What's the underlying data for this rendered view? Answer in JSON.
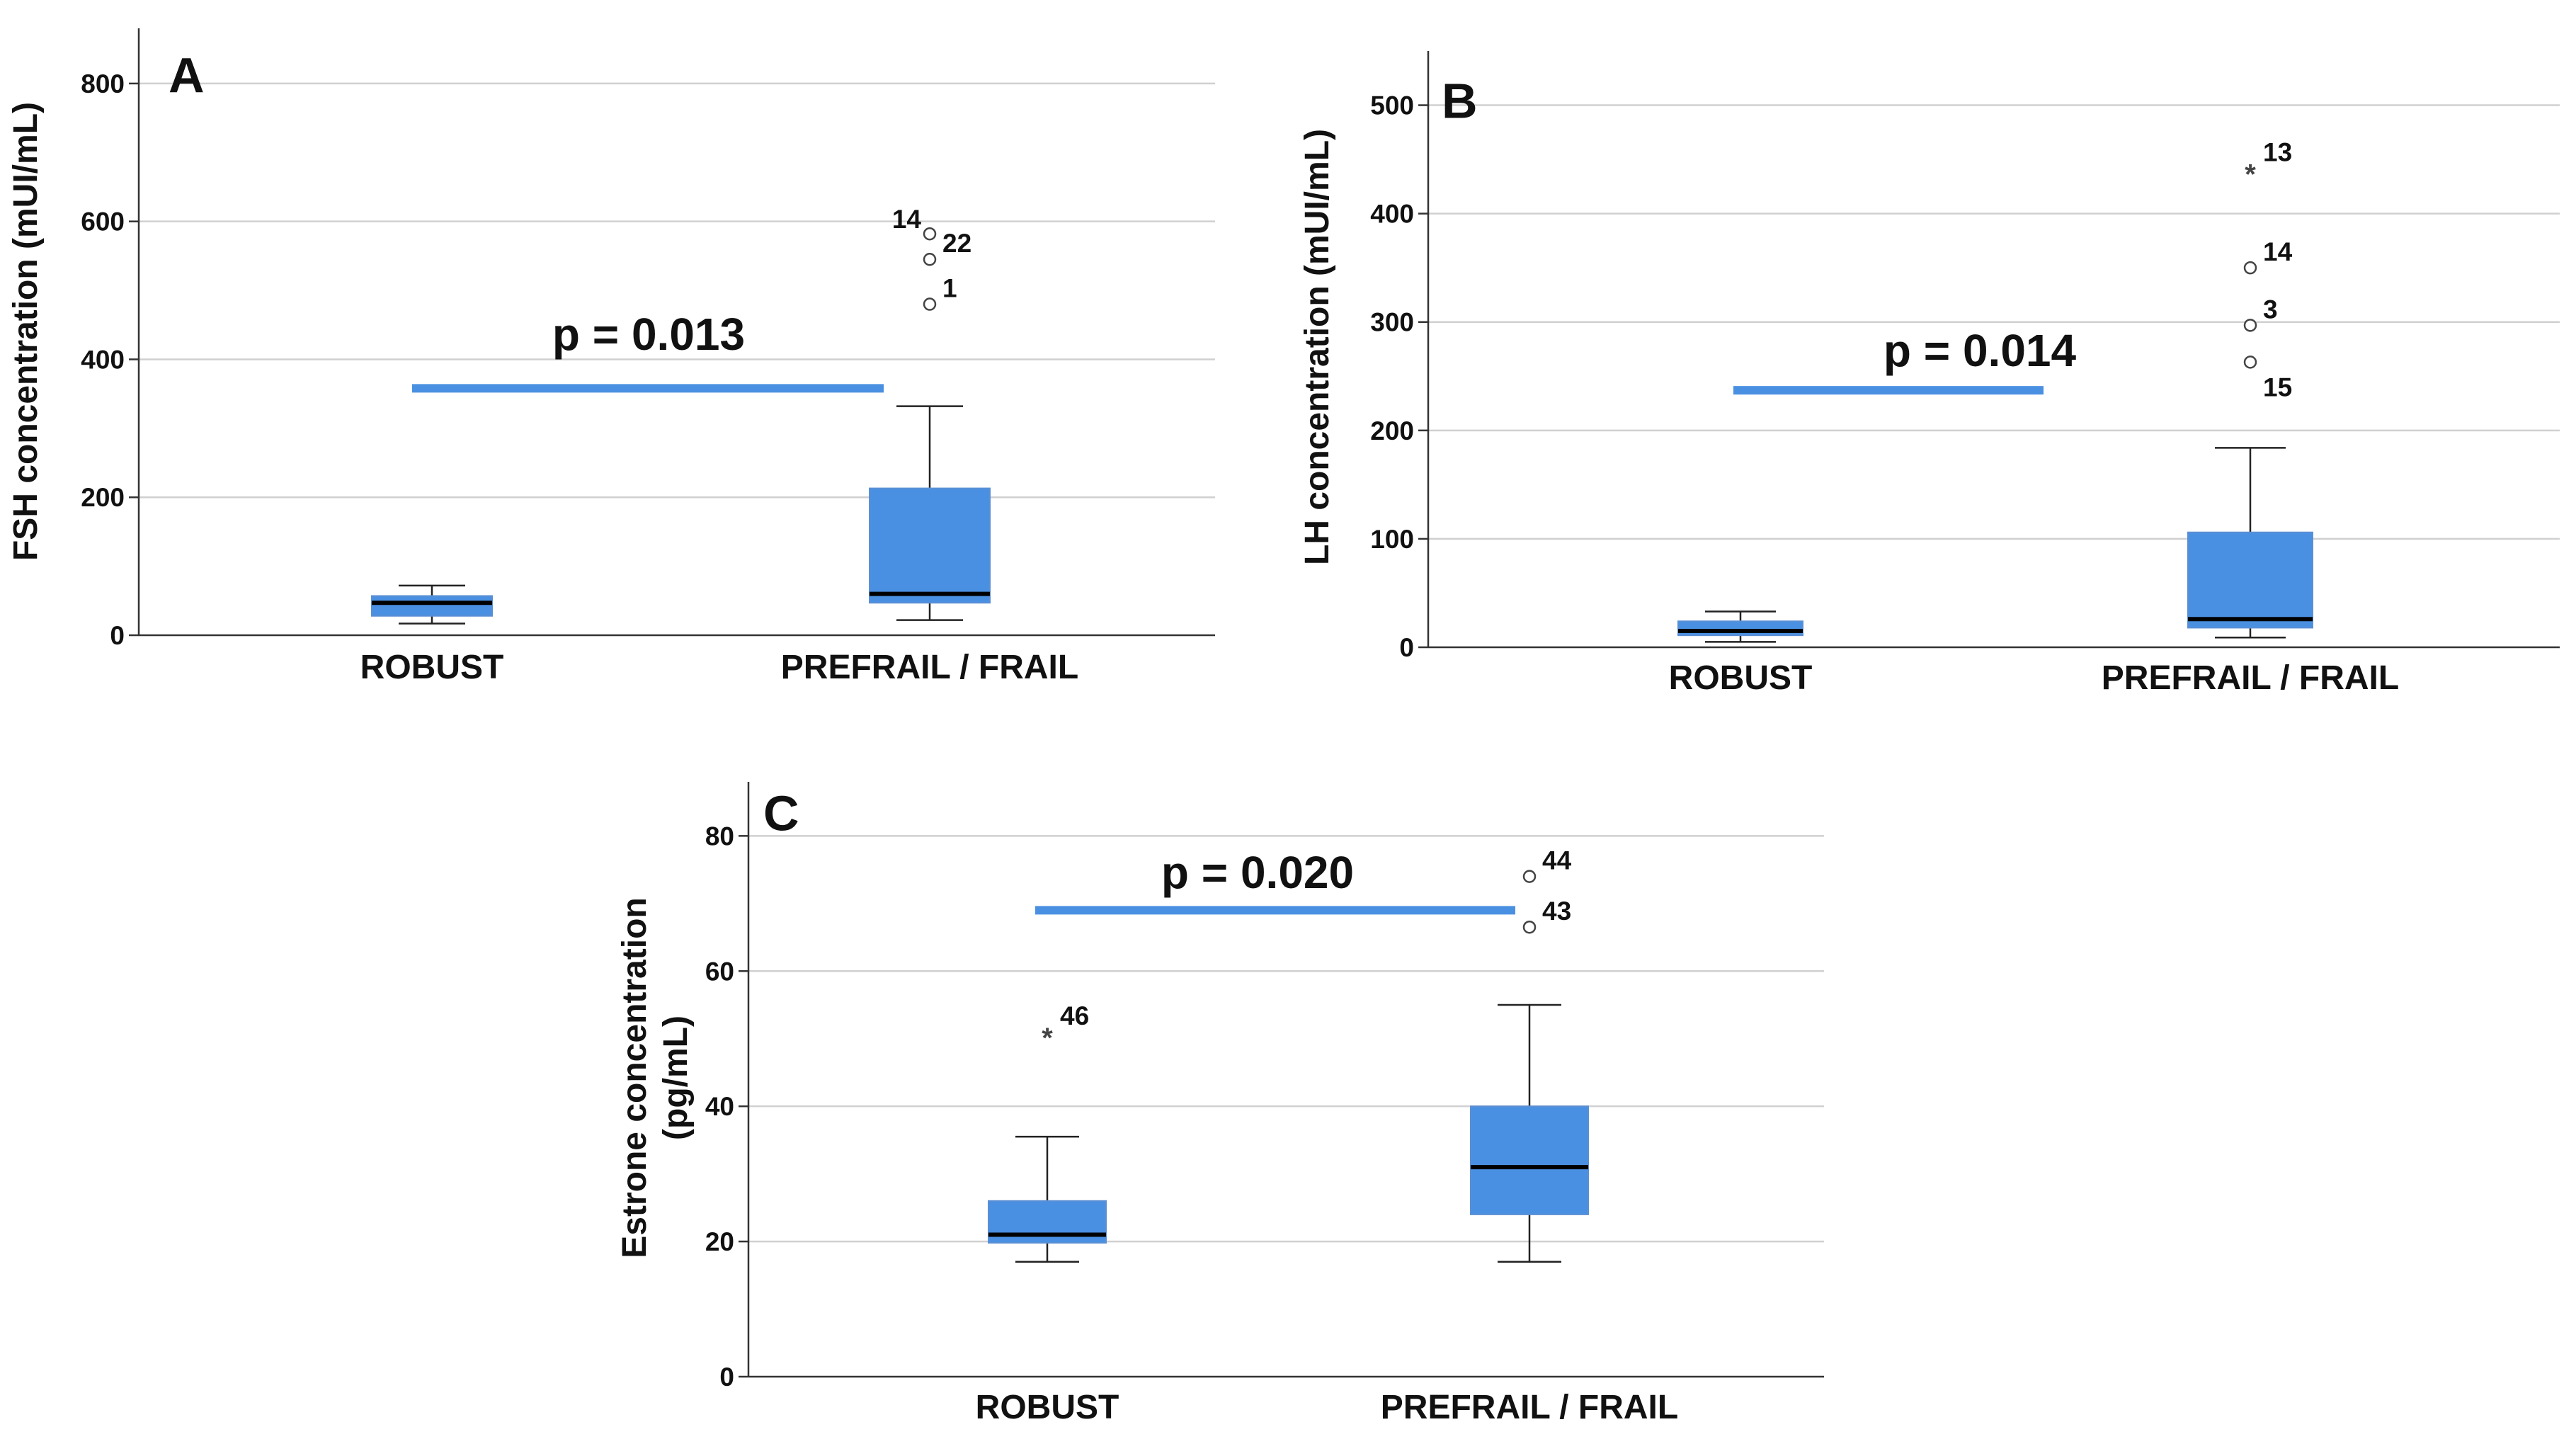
{
  "style": {
    "box_fill": "#4a90e2",
    "sig_bar_color": "#4a90e2",
    "grid_color": "#d0d0d0",
    "axis_color": "#333333",
    "text_color": "#111111"
  },
  "chart_data": [
    {
      "panel": "A",
      "type": "box",
      "ylabel": "FSH concentration (mUI/mL)",
      "ylim": [
        0,
        880
      ],
      "yticks": [
        0,
        200,
        400,
        600,
        800
      ],
      "categories": [
        "ROBUST",
        "PREFRAIL / FRAIL"
      ],
      "boxes": [
        {
          "category": "ROBUST",
          "whisker_low": 17,
          "q1": 28,
          "median": 47,
          "q3": 57,
          "whisker_high": 72,
          "outliers": []
        },
        {
          "category": "PREFRAIL / FRAIL",
          "whisker_low": 22,
          "q1": 47,
          "median": 60,
          "q3": 213,
          "whisker_high": 332,
          "outliers": [
            {
              "value": 582,
              "label": "14",
              "marker": "circle",
              "label_side": "left"
            },
            {
              "value": 545,
              "label": "22",
              "marker": "circle",
              "label_side": "right"
            },
            {
              "value": 480,
              "label": "1",
              "marker": "circle",
              "label_side": "right"
            }
          ]
        }
      ],
      "significance": {
        "text": "p = 0.013",
        "level": 358
      }
    },
    {
      "panel": "B",
      "type": "box",
      "ylabel": "LH concentration (mUI/mL)",
      "ylim": [
        0,
        550
      ],
      "yticks": [
        0,
        100,
        200,
        300,
        400,
        500
      ],
      "categories": [
        "ROBUST",
        "PREFRAIL / FRAIL"
      ],
      "boxes": [
        {
          "category": "ROBUST",
          "whisker_low": 5,
          "q1": 11,
          "median": 15,
          "q3": 24,
          "whisker_high": 33,
          "outliers": []
        },
        {
          "category": "PREFRAIL / FRAIL",
          "whisker_low": 9,
          "q1": 18,
          "median": 26,
          "q3": 106,
          "whisker_high": 184,
          "outliers": [
            {
              "value": 442,
              "label": "13",
              "marker": "star",
              "label_side": "right"
            },
            {
              "value": 350,
              "label": "14",
              "marker": "circle",
              "label_side": "right"
            },
            {
              "value": 297,
              "label": "3",
              "marker": "circle",
              "label_side": "right"
            },
            {
              "value": 263,
              "label": "15",
              "marker": "circle",
              "label_side": "below-right"
            }
          ]
        }
      ],
      "significance": {
        "text": "p = 0.014",
        "level": 237
      }
    },
    {
      "panel": "C",
      "type": "box",
      "ylabel": "Estrone concentration (pg/mL)",
      "ylabel_lines": [
        "Estrone concentration",
        "(pg/mL)"
      ],
      "ylim": [
        0,
        88
      ],
      "yticks": [
        0,
        20,
        40,
        60,
        80
      ],
      "categories": [
        "ROBUST",
        "PREFRAIL / FRAIL"
      ],
      "boxes": [
        {
          "category": "ROBUST",
          "whisker_low": 17,
          "q1": 19.8,
          "median": 21,
          "q3": 26,
          "whisker_high": 35.5,
          "outliers": [
            {
              "value": 51,
              "label": "46",
              "marker": "star",
              "label_side": "right"
            }
          ]
        },
        {
          "category": "PREFRAIL / FRAIL",
          "whisker_low": 17,
          "q1": 24,
          "median": 31,
          "q3": 40,
          "whisker_high": 55,
          "outliers": [
            {
              "value": 74,
              "label": "44",
              "marker": "circle",
              "label_side": "right"
            },
            {
              "value": 66.5,
              "label": "43",
              "marker": "circle",
              "label_side": "right"
            }
          ]
        }
      ],
      "significance": {
        "text": "p = 0.020",
        "level": 69
      }
    }
  ]
}
